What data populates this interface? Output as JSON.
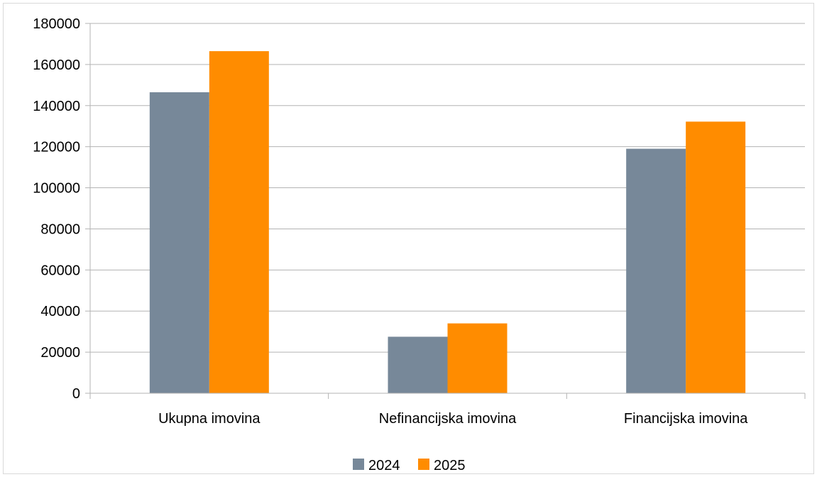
{
  "chart_data": {
    "type": "bar",
    "categories": [
      "Ukupna imovina",
      "Nefinancijska imovina",
      "Financijska imovina"
    ],
    "series": [
      {
        "name": "2024",
        "values": [
          146500,
          27500,
          119000
        ],
        "color": "#778899"
      },
      {
        "name": "2025",
        "values": [
          166500,
          34000,
          132200
        ],
        "color": "#ff8c00"
      }
    ],
    "y_ticks": [
      "0",
      "20000",
      "40000",
      "60000",
      "80000",
      "100000",
      "120000",
      "140000",
      "160000",
      "180000"
    ],
    "ylim": [
      0,
      180000
    ],
    "grid": true,
    "legend_position": "bottom"
  }
}
